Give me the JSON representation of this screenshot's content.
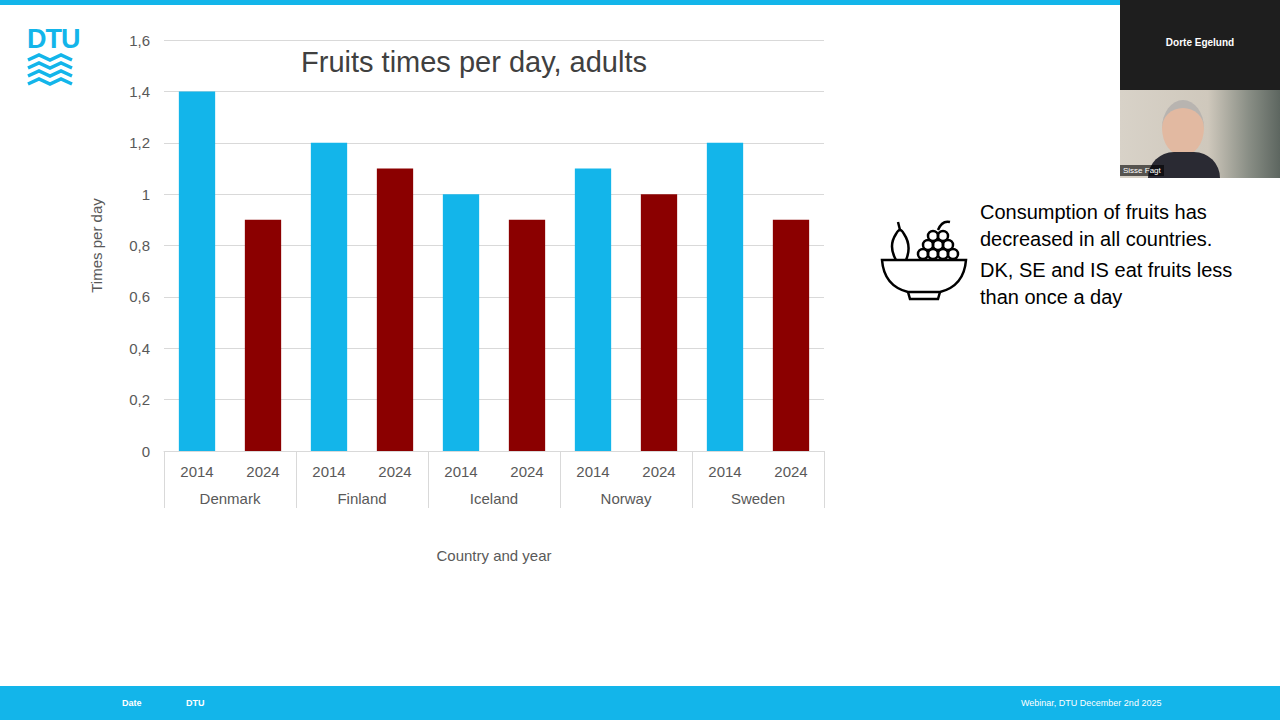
{
  "chart_data": {
    "type": "bar",
    "title": "Fruits times per day, adults",
    "x_label": "Country and year",
    "y_label": "Times per day",
    "categories": [
      "2014",
      "2024",
      "2014",
      "2024",
      "2014",
      "2024",
      "2014",
      "2024",
      "2014",
      "2024"
    ],
    "groups": [
      "Denmark",
      "Finland",
      "Iceland",
      "Norway",
      "Sweden"
    ],
    "values": [
      1.4,
      0.9,
      1.2,
      1.1,
      1.0,
      0.9,
      1.1,
      1.0,
      1.2,
      0.9
    ],
    "colors": [
      "#13b5ea",
      "#8b0000",
      "#13b5ea",
      "#8b0000",
      "#13b5ea",
      "#8b0000",
      "#13b5ea",
      "#8b0000",
      "#13b5ea",
      "#8b0000"
    ],
    "ylim": [
      0,
      1.6
    ],
    "yticks": [
      0,
      {
        "value": 0.2,
        "label": "0,2"
      },
      {
        "value": 0.4,
        "label": "0,4"
      },
      {
        "value": 0.6,
        "label": "0,6"
      },
      {
        "value": 0.8,
        "label": "0,8"
      },
      {
        "value": 1,
        "label": "1"
      },
      {
        "value": 1.2,
        "label": "1,2"
      },
      {
        "value": 1.4,
        "label": "1,4"
      },
      {
        "value": 1.6,
        "label": "1,6"
      }
    ],
    "grid": true,
    "annotations": [
      "Consumption of fruits has decreased in all countries.",
      "DK, SE and IS eat fruits less than once a day"
    ]
  },
  "slide": {
    "logo": "DTU",
    "participants": [
      "Dorte Egelund",
      "Sisse Fagt"
    ],
    "footer": [
      "Date",
      "DTU",
      "Webinar, DTU December 2nd 2025"
    ]
  }
}
